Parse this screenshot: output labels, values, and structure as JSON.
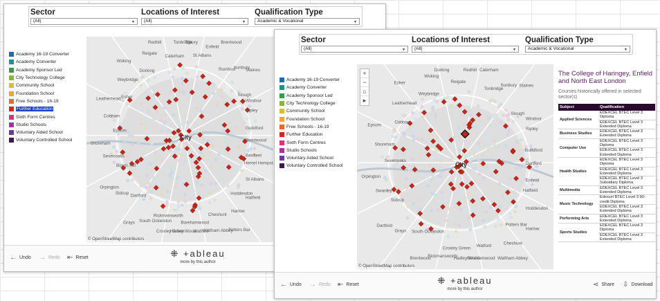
{
  "filters": {
    "sector": {
      "title": "Sector",
      "value": "(All)"
    },
    "locations": {
      "title": "Locations of Interest",
      "value": "(All)"
    },
    "qualification": {
      "title": "Qualification Type",
      "value": "Academic & Vocational"
    }
  },
  "legend": [
    {
      "label": "Academy 16-19 Converter",
      "color": "#2a67a9"
    },
    {
      "label": "Academy Converter",
      "color": "#21918c"
    },
    {
      "label": "Academy Sponsor Led",
      "color": "#3a9a4a"
    },
    {
      "label": "City Technology College",
      "color": "#8ab53a"
    },
    {
      "label": "Community School",
      "color": "#d8bd3c"
    },
    {
      "label": "Foundation School",
      "color": "#f0a43a"
    },
    {
      "label": "Free Schools - 16-19",
      "color": "#e76d23"
    },
    {
      "label": "Further Education",
      "color": "#cc2a1e"
    },
    {
      "label": "Sixth Form Centres",
      "color": "#d5337a"
    },
    {
      "label": "Studio Schools",
      "color": "#a633a6"
    },
    {
      "label": "Voluntary Aided School",
      "color": "#6b3b9a"
    },
    {
      "label": "Voluntary Controlled School",
      "color": "#3c1a4e"
    }
  ],
  "selected_legend": "Further Education",
  "map": {
    "attribution": "© OpenStreetMap contributors",
    "places_back": [
      "Hemel Hempstead",
      "St Albans",
      "Hatfield",
      "Hoddesdon",
      "Harlow",
      "Potters Bar",
      "Cheshunt",
      "Waltham Abbey",
      "Watford",
      "Borehamwood",
      "Hadley Wood",
      "Croxley Green",
      "Rickmansworth",
      "South Ockendon",
      "Grays",
      "Dartford",
      "Sidcup",
      "Orpington",
      "Biggin Hill",
      "Sevenoaks",
      "Shoreham",
      "Epsom",
      "Cobham",
      "Leatherhead",
      "Esher",
      "Weybridge",
      "Woking",
      "Dorking",
      "Reigate",
      "Redhill",
      "Caterham",
      "Tonbridge",
      "Tilbury",
      "St Albans",
      "Enfield",
      "Brentwood",
      "Romford",
      "Sunbury",
      "Staines",
      "Slough",
      "Windsor",
      "Ripley",
      "Guildford",
      "Brentwood",
      "Benfleet"
    ],
    "places_front": [
      "Hatfield",
      "Hoddesdon",
      "Harlow",
      "Potters Bar",
      "Cheshunt",
      "Waltham Abbey",
      "Watford",
      "Borehamwood",
      "Hadley Wood",
      "Croxley Green",
      "Rickmansworth",
      "Brentwood",
      "South Ockendon",
      "Grays",
      "Dartford",
      "Sidcup",
      "Swanley",
      "Orpington",
      "Sevenoaks",
      "Shoreham",
      "Epsom",
      "Cobham",
      "Leatherhead",
      "Esher",
      "Weybridge",
      "Woking",
      "Dorking",
      "Reigate",
      "Redhill",
      "Caterham",
      "Tonbridge",
      "Sunbury",
      "Staines",
      "Slough",
      "Windsor",
      "Ripley",
      "Guildford",
      "Dartford",
      "Enfield"
    ],
    "city_label": "City"
  },
  "toolbar": {
    "undo": "Undo",
    "redo": "Redo",
    "reset": "Reset",
    "share": "Share",
    "download": "Download",
    "logo": "+ableau",
    "more": "more by this author"
  },
  "detail": {
    "title": "The College of Haringey, Enfield and North East London",
    "subtitle": "Courses historically offered in selected sector(s)",
    "col_subject": "Subject",
    "col_qualification": "Qualification",
    "rows": [
      {
        "subject": "Applied Sciences",
        "quals": [
          "EDEXCEL BTEC Level 3 Diploma",
          "EDEXCEL BTEC Level 3 Extended Diploma"
        ]
      },
      {
        "subject": "Business Studies",
        "quals": [
          "EDEXCEL BTEC Level 3 Extended Diploma"
        ]
      },
      {
        "subject": "Computer Use",
        "quals": [
          "EDEXCEL BTEC Level 3 Diploma",
          "EDEXCEL BTEC Level 3 Extended Diploma"
        ]
      },
      {
        "subject": "Health Studies",
        "quals": [
          "EDEXCEL BTEC Level 3 Diploma",
          "EDEXCEL BTEC Level 3 Extended Diploma",
          "EDEXCEL BTEC Level 3 Subsidiary Diploma"
        ]
      },
      {
        "subject": "Multimedia",
        "quals": [
          "EDEXCEL BTEC Level 3 Extended Diploma"
        ]
      },
      {
        "subject": "Music Technology",
        "quals": [
          "Edexcel BTEC Level 3 90-credit Diploma",
          "EDEXCEL BTEC Level 3 Extended Diploma"
        ]
      },
      {
        "subject": "Performing Arts",
        "quals": [
          "EDEXCEL BTEC Level 3 Extended Diploma"
        ]
      },
      {
        "subject": "Sports Studies",
        "quals": [
          "EDEXCEL BTEC Level 3 Diploma",
          "EDEXCEL BTEC Level 3 Extended Diploma"
        ]
      }
    ]
  }
}
